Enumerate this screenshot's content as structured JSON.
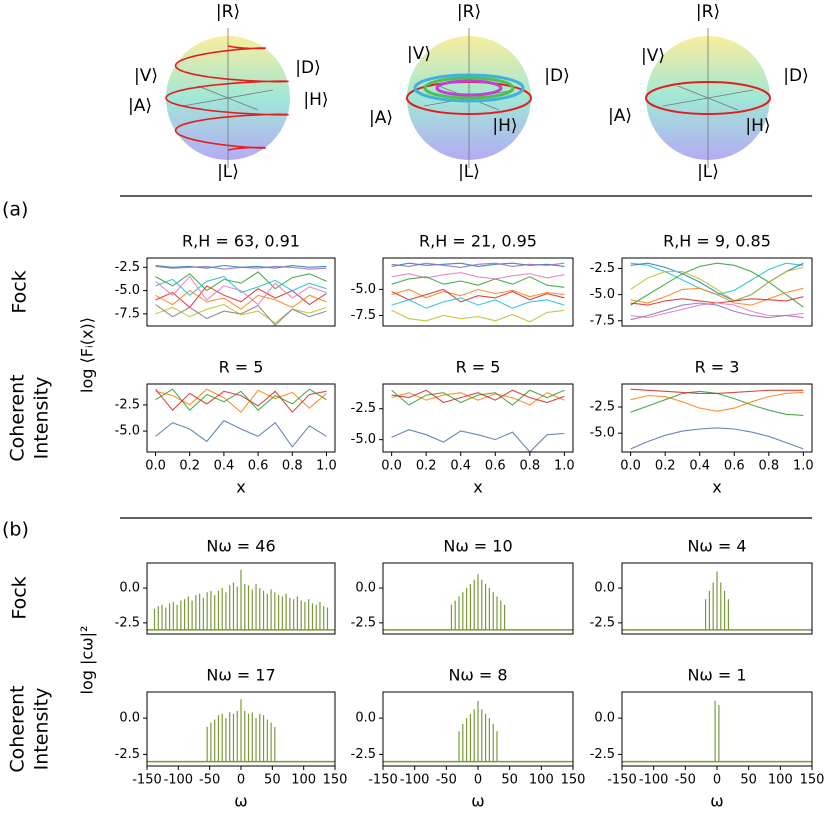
{
  "figure": {
    "panel_a": "(a)",
    "panel_b": "(b)",
    "row_labels": [
      [
        "Fock"
      ],
      [
        "Coherent",
        "Intensity"
      ],
      [
        "Fock"
      ],
      [
        "Coherent",
        "Intensity"
      ]
    ],
    "ylabel_a": "log ⟨Fᵢ(x)⟩",
    "ylabel_b": "log |cω|²"
  },
  "spheres": [
    {
      "labels": [
        "|R⟩",
        "|V⟩",
        "|D⟩",
        "|A⟩",
        "|H⟩",
        "|L⟩"
      ]
    },
    {
      "labels": [
        "|R⟩",
        "|V⟩",
        "|D⟩",
        "|A⟩",
        "|H⟩",
        "|L⟩"
      ]
    },
    {
      "labels": [
        "|R⟩",
        "|V⟩",
        "|D⟩",
        "|A⟩",
        "|H⟩",
        "|L⟩"
      ]
    }
  ],
  "chart_data": [
    {
      "type": "line",
      "title": "R,H = 63, 0.91",
      "x": [
        0,
        0.1,
        0.2,
        0.3,
        0.4,
        0.5,
        0.6,
        0.7,
        0.8,
        0.9,
        1
      ],
      "xlim": [
        -0.05,
        1.05
      ],
      "ylim": [
        -8.8,
        -1.5
      ],
      "yticks": [
        -2.5,
        {
          "value": -5,
          "label": "-5.0"
        },
        -7.5
      ],
      "series": [
        {
          "color": "#1f77b4",
          "values": [
            -2.3,
            -2.5,
            -2.4,
            -2.6,
            -2.3,
            -2.5,
            -2.4,
            -2.6,
            -2.3,
            -2.5,
            -2.4
          ]
        },
        {
          "color": "#9467bd",
          "values": [
            -2.4,
            -2.6,
            -2.5,
            -2.4,
            -2.7,
            -2.5,
            -2.6,
            -2.4,
            -2.5,
            -2.7,
            -2.6
          ]
        },
        {
          "color": "#2ca02c",
          "values": [
            -3.5,
            -4.5,
            -3.2,
            -5.0,
            -3.8,
            -4.2,
            -3.0,
            -4.8,
            -3.6,
            -3.2,
            -4.0
          ]
        },
        {
          "color": "#d62728",
          "values": [
            -6.0,
            -5.2,
            -6.8,
            -4.5,
            -5.5,
            -6.2,
            -4.8,
            -5.8,
            -5.0,
            -6.5,
            -5.3
          ]
        },
        {
          "color": "#17becf",
          "values": [
            -4.5,
            -3.8,
            -5.5,
            -4.0,
            -3.5,
            -5.2,
            -4.6,
            -3.9,
            -5.0,
            -4.2,
            -4.8
          ]
        },
        {
          "color": "#ff7f0e",
          "values": [
            -5.5,
            -6.5,
            -5.0,
            -6.2,
            -5.8,
            -7.0,
            -5.5,
            -6.0,
            -6.8,
            -5.5,
            -6.2
          ]
        },
        {
          "color": "#e377c2",
          "values": [
            -4.0,
            -5.5,
            -3.5,
            -6.0,
            -4.5,
            -5.0,
            -6.5,
            -4.2,
            -5.8,
            -4.6,
            -5.2
          ]
        },
        {
          "color": "#bcbd22",
          "values": [
            -7.5,
            -6.8,
            -7.8,
            -7.0,
            -6.5,
            -7.6,
            -7.2,
            -8.5,
            -7.0,
            -7.4,
            -6.8
          ]
        },
        {
          "color": "#7f7f7f",
          "values": [
            -6.5,
            -7.8,
            -6.8,
            -8.0,
            -7.2,
            -7.5,
            -6.6,
            -8.7,
            -7.0,
            -7.8,
            -7.2
          ]
        }
      ]
    },
    {
      "type": "line",
      "title": "R,H = 21, 0.95",
      "x": [
        0,
        0.1,
        0.2,
        0.3,
        0.4,
        0.5,
        0.6,
        0.7,
        0.8,
        0.9,
        1
      ],
      "xlim": [
        -0.05,
        1.05
      ],
      "ylim": [
        -8.5,
        -2
      ],
      "yticks": [
        {
          "value": -5,
          "label": "-5.0"
        },
        -7.5
      ],
      "series": [
        {
          "color": "#1f77b4",
          "values": [
            -2.8,
            -2.5,
            -2.7,
            -2.6,
            -2.5,
            -2.8,
            -2.6,
            -2.5,
            -2.7,
            -2.6,
            -2.8
          ]
        },
        {
          "color": "#9467bd",
          "values": [
            -2.6,
            -2.8,
            -2.5,
            -2.7,
            -2.9,
            -2.6,
            -2.5,
            -2.8,
            -2.6,
            -2.7,
            -2.5
          ]
        },
        {
          "color": "#e377c2",
          "values": [
            -3.8,
            -3.5,
            -3.9,
            -3.6,
            -3.4,
            -3.8,
            -4.0,
            -3.7,
            -3.5,
            -3.9,
            -3.6
          ]
        },
        {
          "color": "#2ca02c",
          "values": [
            -4.5,
            -4.0,
            -3.8,
            -4.5,
            -4.2,
            -4.6,
            -4.0,
            -4.5,
            -3.8,
            -4.6,
            -4.8
          ]
        },
        {
          "color": "#ff7f0e",
          "values": [
            -5.5,
            -5.0,
            -5.8,
            -5.2,
            -5.6,
            -5.0,
            -5.4,
            -5.1,
            -5.7,
            -5.3,
            -5.5
          ]
        },
        {
          "color": "#d62728",
          "values": [
            -5.2,
            -6.0,
            -5.5,
            -5.0,
            -6.2,
            -5.6,
            -5.8,
            -5.2,
            -6.0,
            -5.4,
            -5.8
          ]
        },
        {
          "color": "#17becf",
          "values": [
            -6.5,
            -6.0,
            -6.8,
            -6.2,
            -5.8,
            -6.5,
            -6.0,
            -6.8,
            -6.2,
            -6.0,
            -6.5
          ]
        },
        {
          "color": "#bcbd22",
          "values": [
            -7.0,
            -7.8,
            -8.0,
            -7.5,
            -7.8,
            -7.6,
            -8.0,
            -7.4,
            -8.1,
            -7.2,
            -7.0
          ]
        }
      ]
    },
    {
      "type": "line",
      "title": "R,H = 9, 0.85",
      "x": [
        0,
        0.1,
        0.2,
        0.3,
        0.4,
        0.5,
        0.6,
        0.7,
        0.8,
        0.9,
        1
      ],
      "xlim": [
        -0.05,
        1.05
      ],
      "ylim": [
        -8,
        -1.5
      ],
      "yticks": [
        -2.5,
        {
          "value": -5,
          "label": "-5.0"
        },
        -7.5
      ],
      "series": [
        {
          "color": "#17becf",
          "values": [
            -2.0,
            -2.2,
            -2.8,
            -3.6,
            -4.4,
            -5.0,
            -4.6,
            -3.6,
            -2.6,
            -2.0,
            -2.2
          ]
        },
        {
          "color": "#1f77b4",
          "values": [
            -2.2,
            -2.0,
            -2.4,
            -3.0,
            -3.8,
            -4.8,
            -5.6,
            -5.0,
            -3.8,
            -2.8,
            -2.0
          ]
        },
        {
          "color": "#2ca02c",
          "values": [
            -6.0,
            -5.0,
            -4.0,
            -3.0,
            -2.3,
            -2.0,
            -2.2,
            -2.8,
            -3.8,
            -5.0,
            -6.2
          ]
        },
        {
          "color": "#bcbd22",
          "values": [
            -4.5,
            -3.4,
            -2.8,
            -2.8,
            -3.5,
            -4.5,
            -5.6,
            -5.0,
            -3.8,
            -2.8,
            -2.4
          ]
        },
        {
          "color": "#ff7f0e",
          "values": [
            -5.5,
            -5.8,
            -5.2,
            -4.5,
            -4.4,
            -5.0,
            -5.8,
            -6.0,
            -5.4,
            -4.8,
            -4.4
          ]
        },
        {
          "color": "#d62728",
          "values": [
            -5.8,
            -6.0,
            -5.6,
            -5.4,
            -5.6,
            -5.8,
            -5.6,
            -5.4,
            -5.5,
            -5.6,
            -5.2
          ]
        },
        {
          "color": "#e377c2",
          "values": [
            -7.0,
            -7.2,
            -6.8,
            -6.4,
            -6.0,
            -5.8,
            -6.0,
            -6.6,
            -7.0,
            -7.0,
            -6.8
          ]
        },
        {
          "color": "#9467bd",
          "values": [
            -7.4,
            -7.0,
            -6.5,
            -6.0,
            -5.8,
            -6.0,
            -6.6,
            -7.0,
            -7.2,
            -7.0,
            -7.2
          ]
        }
      ]
    },
    {
      "type": "line",
      "title": "R = 5",
      "xlabel": "x",
      "x": [
        0,
        0.1,
        0.2,
        0.3,
        0.4,
        0.5,
        0.6,
        0.7,
        0.8,
        0.9,
        1
      ],
      "xlim": [
        -0.05,
        1.05
      ],
      "ylim": [
        -7,
        -0.5
      ],
      "xticks": [
        {
          "value": 0,
          "label": "0.0"
        },
        0.2,
        0.4,
        0.6,
        0.8,
        {
          "value": 1,
          "label": "1.0"
        }
      ],
      "yticks": [
        -2.5,
        {
          "value": -5,
          "label": "-5.0"
        }
      ],
      "series": [
        {
          "color": "#4c72b0",
          "values": [
            -5.5,
            -4.2,
            -4.8,
            -6.0,
            -4.0,
            -4.8,
            -5.5,
            -4.2,
            -6.5,
            -4.5,
            -5.5
          ]
        },
        {
          "color": "#ff7f0e",
          "values": [
            -1.2,
            -1.6,
            -2.5,
            -1.0,
            -1.8,
            -3.2,
            -1.1,
            -1.9,
            -1.3,
            -2.8,
            -1.4
          ]
        },
        {
          "color": "#2ca02c",
          "values": [
            -2.0,
            -1.0,
            -3.0,
            -1.5,
            -2.2,
            -1.2,
            -3.0,
            -1.6,
            -2.4,
            -1.0,
            -2.0
          ]
        },
        {
          "color": "#d62728",
          "values": [
            -1.0,
            -3.0,
            -1.4,
            -2.4,
            -1.2,
            -1.6,
            -2.6,
            -1.2,
            -3.2,
            -1.5,
            -1.2
          ]
        }
      ]
    },
    {
      "type": "line",
      "title": "R = 5",
      "xlabel": "x",
      "x": [
        0,
        0.1,
        0.2,
        0.3,
        0.4,
        0.5,
        0.6,
        0.7,
        0.8,
        0.9,
        1
      ],
      "xlim": [
        -0.05,
        1.05
      ],
      "ylim": [
        -6,
        -0.5
      ],
      "xticks": [
        {
          "value": 0,
          "label": "0.0"
        },
        0.2,
        0.4,
        0.6,
        0.8,
        {
          "value": 1,
          "label": "1.0"
        }
      ],
      "yticks": [
        -2.5,
        {
          "value": -5,
          "label": "-5.0"
        }
      ],
      "series": [
        {
          "color": "#4c72b0",
          "values": [
            -4.8,
            -4.2,
            -4.6,
            -5.2,
            -4.3,
            -4.6,
            -5.0,
            -4.4,
            -6.0,
            -4.6,
            -4.5
          ]
        },
        {
          "color": "#ff7f0e",
          "values": [
            -1.6,
            -1.2,
            -1.8,
            -1.4,
            -1.2,
            -1.8,
            -1.3,
            -1.6,
            -2.2,
            -1.2,
            -1.8
          ]
        },
        {
          "color": "#2ca02c",
          "values": [
            -1.0,
            -2.2,
            -1.4,
            -1.2,
            -2.0,
            -1.4,
            -1.2,
            -2.2,
            -1.0,
            -1.6,
            -1.0
          ]
        },
        {
          "color": "#d62728",
          "values": [
            -1.4,
            -1.6,
            -1.0,
            -2.0,
            -1.6,
            -1.2,
            -1.8,
            -1.0,
            -1.6,
            -2.0,
            -1.5
          ]
        }
      ]
    },
    {
      "type": "line",
      "title": "R = 3",
      "xlabel": "x",
      "x": [
        0,
        0.1,
        0.2,
        0.3,
        0.4,
        0.5,
        0.6,
        0.7,
        0.8,
        0.9,
        1
      ],
      "xlim": [
        -0.05,
        1.05
      ],
      "ylim": [
        -6.8,
        -0.3
      ],
      "xticks": [
        {
          "value": 0,
          "label": "0.0"
        },
        0.2,
        0.4,
        0.6,
        0.8,
        {
          "value": 1,
          "label": "1.0"
        }
      ],
      "yticks": [
        -2.5,
        {
          "value": -5,
          "label": "-5.0"
        }
      ],
      "series": [
        {
          "color": "#4c72b0",
          "values": [
            -6.5,
            -5.8,
            -5.2,
            -4.8,
            -4.6,
            -4.5,
            -4.6,
            -4.9,
            -5.3,
            -5.9,
            -6.5
          ]
        },
        {
          "color": "#ff7f0e",
          "values": [
            -1.8,
            -1.4,
            -1.5,
            -2.0,
            -2.6,
            -2.9,
            -2.6,
            -2.0,
            -1.5,
            -1.2,
            -1.1
          ]
        },
        {
          "color": "#2ca02c",
          "values": [
            -3.0,
            -2.4,
            -1.8,
            -1.2,
            -1.0,
            -1.2,
            -1.7,
            -2.3,
            -2.8,
            -3.2,
            -3.3
          ]
        },
        {
          "color": "#d62728",
          "values": [
            -0.8,
            -0.9,
            -1.0,
            -1.1,
            -1.2,
            -1.2,
            -1.1,
            -1.0,
            -0.9,
            -0.9,
            -0.9
          ]
        }
      ]
    },
    {
      "type": "stem",
      "title": "Nω = 46",
      "color": "#7a9a3a",
      "baseline": -3,
      "xlim": [
        -150,
        150
      ],
      "ylim": [
        -3.3,
        1.8
      ],
      "yticks": [
        {
          "value": 0,
          "label": "0.0"
        },
        -2.5
      ],
      "x": [
        -138,
        -132,
        -126,
        -120,
        -114,
        -108,
        -102,
        -96,
        -90,
        -84,
        -78,
        -72,
        -66,
        -60,
        -54,
        -48,
        -42,
        -36,
        -30,
        -24,
        -18,
        -12,
        -6,
        0,
        6,
        12,
        18,
        24,
        30,
        36,
        42,
        48,
        54,
        60,
        66,
        72,
        78,
        84,
        90,
        96,
        102,
        108,
        114,
        120,
        126,
        132,
        138
      ],
      "values": [
        -1.5,
        -1.3,
        -1.2,
        -1.4,
        -1.1,
        -1.0,
        -1.2,
        -0.9,
        -0.8,
        -0.6,
        -0.9,
        -0.5,
        -0.4,
        -0.7,
        -0.3,
        -0.2,
        -0.5,
        -0.2,
        0.0,
        -0.3,
        0.2,
        0.4,
        0.1,
        1.3,
        0.3,
        0.2,
        -0.1,
        0.3,
        0.0,
        -0.2,
        -0.4,
        -0.1,
        -0.3,
        -0.5,
        -0.6,
        -0.4,
        -0.7,
        -0.8,
        -0.6,
        -0.9,
        -1.0,
        -0.8,
        -1.1,
        -1.2,
        -1.0,
        -1.3,
        -1.4
      ]
    },
    {
      "type": "stem",
      "title": "Nω = 10",
      "color": "#7a9a3a",
      "baseline": -3,
      "xlim": [
        -150,
        150
      ],
      "ylim": [
        -3.3,
        1.8
      ],
      "yticks": [
        {
          "value": 0,
          "label": "0.0"
        },
        -2.5
      ],
      "x": [
        -42,
        -36,
        -30,
        -24,
        -18,
        -12,
        -6,
        0,
        6,
        12,
        18,
        24,
        30,
        36,
        42
      ],
      "values": [
        -1.2,
        -0.9,
        -0.6,
        -0.3,
        0.0,
        0.3,
        0.6,
        1.0,
        0.6,
        0.3,
        0.0,
        -0.3,
        -0.6,
        -0.9,
        -1.2
      ]
    },
    {
      "type": "stem",
      "title": "Nω = 4",
      "color": "#7a9a3a",
      "baseline": -3,
      "xlim": [
        -150,
        150
      ],
      "ylim": [
        -3.3,
        1.8
      ],
      "yticks": [
        {
          "value": 0,
          "label": "0.0"
        },
        -2.5
      ],
      "x": [
        -18,
        -12,
        -6,
        0,
        6,
        12,
        18
      ],
      "values": [
        -0.8,
        -0.2,
        0.4,
        1.2,
        0.4,
        -0.2,
        -0.8
      ]
    },
    {
      "type": "stem",
      "title": "Nω = 17",
      "xlabel": "ω",
      "color": "#7a9a3a",
      "baseline": -3,
      "xlim": [
        -150,
        150
      ],
      "ylim": [
        -3.3,
        1.8
      ],
      "xticks": [
        -150,
        -100,
        -50,
        0,
        50,
        100,
        150
      ],
      "yticks": [
        {
          "value": 0,
          "label": "0.0"
        },
        -2.5
      ],
      "x": [
        -54,
        -48,
        -42,
        -36,
        -30,
        -24,
        -18,
        -12,
        -6,
        0,
        6,
        12,
        18,
        24,
        30,
        36,
        42,
        48,
        54
      ],
      "values": [
        -0.6,
        -0.3,
        -0.1,
        0.2,
        0.3,
        0.0,
        0.4,
        0.3,
        0.5,
        1.3,
        0.5,
        0.3,
        0.4,
        0.0,
        0.3,
        0.2,
        -0.1,
        -0.3,
        -0.6
      ]
    },
    {
      "type": "stem",
      "title": "Nω = 8",
      "xlabel": "ω",
      "color": "#7a9a3a",
      "baseline": -3,
      "xlim": [
        -150,
        150
      ],
      "ylim": [
        -3.3,
        1.8
      ],
      "xticks": [
        -150,
        -100,
        -50,
        0,
        50,
        100,
        150
      ],
      "yticks": [
        {
          "value": 0,
          "label": "0.0"
        },
        -2.5
      ],
      "x": [
        -30,
        -24,
        -18,
        -12,
        -6,
        0,
        6,
        12,
        18,
        24,
        30
      ],
      "values": [
        -0.9,
        -0.4,
        0.0,
        0.3,
        0.6,
        1.2,
        0.6,
        0.3,
        0.0,
        -0.4,
        -0.9
      ]
    },
    {
      "type": "stem",
      "title": "Nω = 1",
      "xlabel": "ω",
      "color": "#7a9a3a",
      "baseline": -3,
      "xlim": [
        -150,
        150
      ],
      "ylim": [
        -3.3,
        1.8
      ],
      "xticks": [
        -150,
        -100,
        -50,
        0,
        50,
        100,
        150
      ],
      "yticks": [
        {
          "value": 0,
          "label": "0.0"
        },
        -2.5
      ],
      "x": [
        -3,
        3
      ],
      "values": [
        1.2,
        0.9
      ]
    }
  ]
}
